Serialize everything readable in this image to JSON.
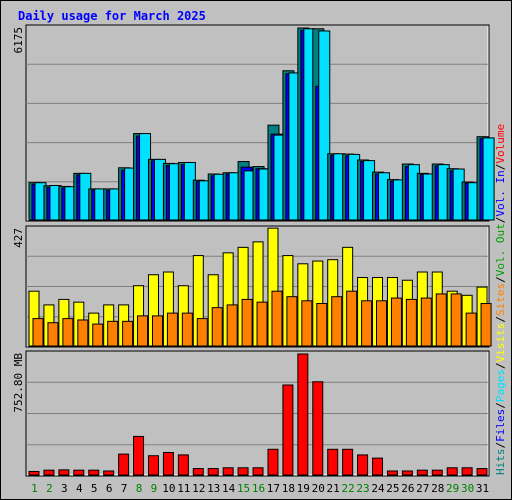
{
  "title": "Daily usage for March 2025",
  "chart_data": {
    "type": "bar",
    "categories": [
      "1",
      "2",
      "3",
      "4",
      "5",
      "6",
      "7",
      "8",
      "9",
      "10",
      "11",
      "12",
      "13",
      "14",
      "15",
      "16",
      "17",
      "18",
      "19",
      "20",
      "21",
      "22",
      "23",
      "24",
      "25",
      "26",
      "27",
      "28",
      "29",
      "30",
      "31"
    ],
    "weekend_days": [
      "1",
      "2",
      "8",
      "9",
      "15",
      "16",
      "22",
      "23",
      "29",
      "30"
    ],
    "panels": [
      {
        "name": "hits-files-pages",
        "ymax_label": "6175",
        "ylim": [
          0,
          6175
        ],
        "series": [
          {
            "name": "Hits",
            "color": "#008080",
            "values": [
              1200,
              1100,
              1080,
              1500,
              1000,
              1000,
              1680,
              2780,
              1950,
              1820,
              1850,
              1280,
              1480,
              1520,
              1880,
              1720,
              3050,
              4800,
              6175,
              6150,
              2130,
              2120,
              1930,
              1540,
              1300,
              1800,
              1500,
              1800,
              1650,
              1220,
              2680
            ]
          },
          {
            "name": "Files",
            "color": "#0000ff",
            "values": [
              1150,
              1050,
              1030,
              1450,
              960,
              950,
              1600,
              2700,
              1900,
              1750,
              1780,
              1230,
              1420,
              1480,
              1700,
              1650,
              2760,
              4700,
              6100,
              4300,
              2080,
              2060,
              1880,
              1480,
              1250,
              1720,
              1460,
              1740,
              1580,
              1180,
              2620
            ]
          },
          {
            "name": "Pages",
            "color": "#00e0ff",
            "values": [
              1200,
              1110,
              1070,
              1500,
              1000,
              1000,
              1670,
              2780,
              1950,
              1810,
              1850,
              1260,
              1470,
              1520,
              1580,
              1640,
              2730,
              4730,
              6150,
              6080,
              2130,
              2110,
              1910,
              1520,
              1290,
              1780,
              1480,
              1780,
              1640,
              1200,
              2640
            ]
          }
        ]
      },
      {
        "name": "visits-sites",
        "ymax_label": "427",
        "ylim": [
          0,
          427
        ],
        "series": [
          {
            "name": "Visits",
            "color": "#ffff00",
            "values": [
              200,
              150,
              170,
              160,
              120,
              150,
              150,
              220,
              260,
              270,
              220,
              330,
              260,
              340,
              360,
              380,
              430,
              330,
              300,
              310,
              315,
              360,
              250,
              250,
              250,
              240,
              270,
              270,
              200,
              185,
              215
            ]
          },
          {
            "name": "Sites",
            "color": "#ff8000",
            "values": [
              100,
              85,
              100,
              95,
              80,
              90,
              90,
              110,
              110,
              120,
              120,
              100,
              140,
              150,
              170,
              160,
              200,
              180,
              165,
              155,
              180,
              200,
              165,
              165,
              175,
              170,
              175,
              190,
              190,
              120,
              155
            ]
          }
        ]
      },
      {
        "name": "volume",
        "ymax_label": "752.80 MB",
        "ylim": [
          0,
          752.8
        ],
        "series": [
          {
            "name": "Volume",
            "color": "#ff0000",
            "values": [
              22,
              30,
              32,
              30,
              30,
              25,
              130,
              240,
              120,
              140,
              125,
              40,
              40,
              45,
              45,
              45,
              160,
              560,
              752.8,
              580,
              160,
              160,
              125,
              105,
              25,
              25,
              30,
              30,
              45,
              45,
              40
            ]
          }
        ]
      }
    ],
    "right_legend": [
      {
        "text": "Hits",
        "color": "#008080"
      },
      {
        "text": "/",
        "color": "#000000"
      },
      {
        "text": "Files",
        "color": "#0000ff"
      },
      {
        "text": "/",
        "color": "#000000"
      },
      {
        "text": "Pages",
        "color": "#00e0ff"
      },
      {
        "text": "/",
        "color": "#000000"
      },
      {
        "text": "Visits",
        "color": "#ffff00"
      },
      {
        "text": "/",
        "color": "#000000"
      },
      {
        "text": "Sites",
        "color": "#ff8000"
      },
      {
        "text": "/",
        "color": "#000000"
      },
      {
        "text": "Vol. Out",
        "color": "#00a000"
      },
      {
        "text": "/",
        "color": "#000000"
      },
      {
        "text": "Vol. In",
        "color": "#0000ff"
      },
      {
        "text": "/",
        "color": "#000000"
      },
      {
        "text": "Volume",
        "color": "#ff0000"
      }
    ],
    "colors": {
      "weekday_label": "#000000",
      "weekend_label": "#008000",
      "grid": "#808080",
      "bar_outline": "#000000"
    }
  }
}
